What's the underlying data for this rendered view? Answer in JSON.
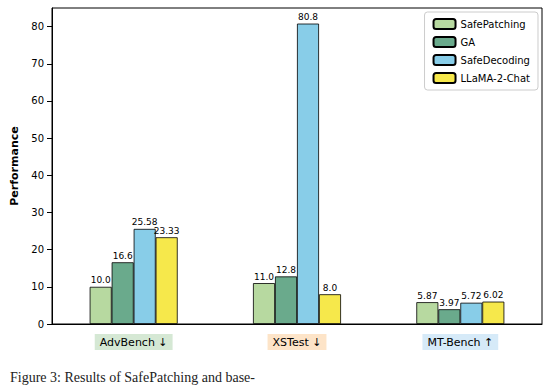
{
  "chart_data": {
    "type": "bar",
    "y_label": "Performance",
    "caption": "Figure 3: Results of SafePatching and base-",
    "categories": [
      "AdvBench ↓",
      "XSTest ↓",
      "MT-Bench ↑"
    ],
    "series": [
      {
        "name": "SafePatching",
        "color": "#b7d9a0",
        "values": [
          10.0,
          11.0,
          5.87
        ],
        "value_labels": [
          "10.0",
          "11.0",
          "5.87"
        ]
      },
      {
        "name": "GA",
        "color": "#6aaa8c",
        "values": [
          16.6,
          12.8,
          3.97
        ],
        "value_labels": [
          "16.6",
          "12.8",
          "3.97"
        ]
      },
      {
        "name": "SafeDecoding",
        "color": "#88cde8",
        "values": [
          25.58,
          80.8,
          5.72
        ],
        "value_labels": [
          "25.58",
          "80.8",
          "5.72"
        ]
      },
      {
        "name": "LLaMA-2-Chat",
        "color": "#f6e84b",
        "values": [
          23.33,
          8.0,
          6.02
        ],
        "value_labels": [
          "23.33",
          "8.0",
          "6.02"
        ]
      }
    ],
    "ylim": [
      0,
      85
    ],
    "yticks": [
      0,
      10,
      20,
      30,
      40,
      50,
      60,
      70,
      80
    ],
    "grid": false,
    "legend": "upper right",
    "data_labels": true
  }
}
